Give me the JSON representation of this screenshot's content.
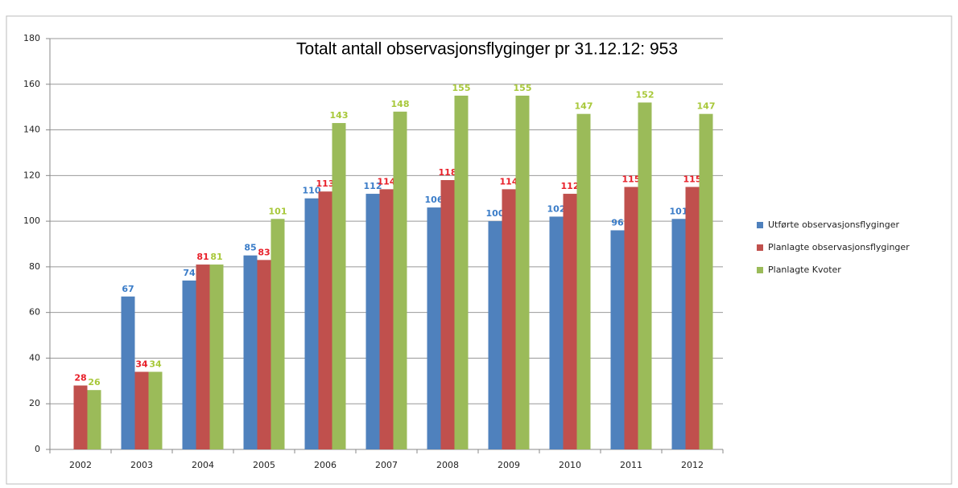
{
  "chart_data": {
    "type": "bar",
    "title": "Totalt antall observasjonsflyginger pr 31.12.12:  953",
    "categories": [
      "2002",
      "2003",
      "2004",
      "2005",
      "2006",
      "2007",
      "2008",
      "2009",
      "2010",
      "2011",
      "2012"
    ],
    "series": [
      {
        "name": "Utførte observasjonsflyginger",
        "color": "#4f81bd",
        "label_color": "#3a7cc8",
        "values": [
          null,
          67,
          74,
          85,
          110,
          112,
          106,
          100,
          102,
          96,
          101
        ]
      },
      {
        "name": "Planlagte observasjonsflyginger",
        "color": "#c0504d",
        "label_color": "#e8202a",
        "values": [
          28,
          34,
          81,
          83,
          113,
          114,
          118,
          114,
          112,
          115,
          115
        ]
      },
      {
        "name": "Planlagte Kvoter",
        "color": "#9bbb59",
        "label_color": "#a8c83a",
        "values": [
          26,
          34,
          81,
          101,
          143,
          148,
          155,
          155,
          147,
          152,
          147
        ]
      }
    ],
    "ylim": [
      0,
      180
    ],
    "yticks": [
      0,
      20,
      40,
      60,
      80,
      100,
      120,
      140,
      160,
      180
    ],
    "grid": true,
    "legend": "right"
  }
}
